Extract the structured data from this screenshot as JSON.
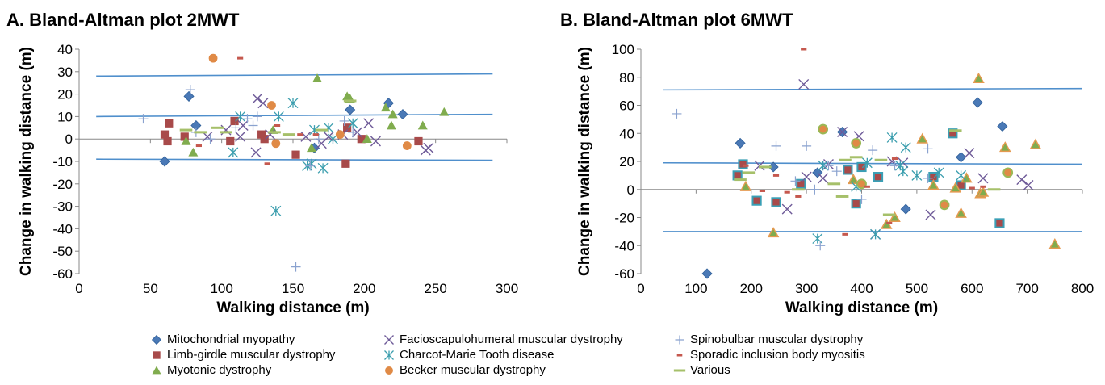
{
  "colors": {
    "Mitochondrial myopathy": "#4a79b6",
    "Limb-girdle muscular dystrophy": "#a84a4a",
    "Myotonic dystrophy": "#80ac4e",
    "Facioscapulohumeral muscular dystrophy": "#6e5a98",
    "Charcot-Marie Tooth disease": "#3b9eae",
    "Becker muscular dystrophy": "#e08a46",
    "Spinobulbar muscular dystrophy": "#8aa2cf",
    "Sporadic inclusion body myositis": "#c5584e",
    "Various": "#a6c06a",
    "line": "#4f8fcc",
    "axis": "#888888"
  },
  "legend": [
    {
      "name": "Mitochondrial myopathy",
      "icon": "diamond-icon"
    },
    {
      "name": "Limb-girdle muscular dystrophy",
      "icon": "square-icon"
    },
    {
      "name": "Myotonic dystrophy",
      "icon": "triangle-icon"
    },
    {
      "name": "Facioscapulohumeral muscular dystrophy",
      "icon": "x-icon"
    },
    {
      "name": "Charcot-Marie Tooth disease",
      "icon": "star-icon"
    },
    {
      "name": "Becker muscular dystrophy",
      "icon": "circle-icon"
    },
    {
      "name": "Spinobulbar muscular dystrophy",
      "icon": "plus-icon"
    },
    {
      "name": "Sporadic inclusion body myositis",
      "icon": "short-dash-icon"
    },
    {
      "name": "Various",
      "icon": "long-dash-icon"
    }
  ],
  "chart_data": [
    {
      "type": "scatter",
      "title": "A. Bland-Altman plot 2MWT",
      "xlabel": "Walking distance (m)",
      "ylabel": "Change in walking distance (m)",
      "xlim": [
        0,
        300
      ],
      "ylim": [
        -60,
        40
      ],
      "xticks": [
        0,
        50,
        100,
        150,
        200,
        250,
        300
      ],
      "yticks": [
        -60,
        -50,
        -40,
        -30,
        -20,
        -10,
        0,
        10,
        20,
        30,
        40
      ],
      "ref_lines": [
        {
          "name": "upper limit",
          "x": [
            12,
            290
          ],
          "y": [
            28,
            29
          ]
        },
        {
          "name": "mean difference",
          "x": [
            12,
            290
          ],
          "y": [
            10,
            11
          ]
        },
        {
          "name": "lower limit",
          "x": [
            12,
            290
          ],
          "y": [
            -9,
            -9.5
          ]
        }
      ],
      "series": [
        {
          "name": "Mitochondrial myopathy",
          "marker": "diamond",
          "points": [
            [
              60,
              -10
            ],
            [
              77,
              19
            ],
            [
              82,
              6
            ],
            [
              190,
              13
            ],
            [
              217,
              16
            ],
            [
              227,
              11
            ],
            [
              165,
              -4
            ]
          ]
        },
        {
          "name": "Limb-girdle muscular dystrophy",
          "marker": "square",
          "points": [
            [
              60,
              2
            ],
            [
              62,
              -1
            ],
            [
              63,
              7
            ],
            [
              74,
              1
            ],
            [
              106,
              -1
            ],
            [
              109,
              8
            ],
            [
              128,
              2
            ],
            [
              130,
              0
            ],
            [
              152,
              -7
            ],
            [
              187,
              -11
            ],
            [
              188,
              5
            ],
            [
              198,
              0
            ],
            [
              238,
              -1
            ]
          ]
        },
        {
          "name": "Myotonic dystrophy",
          "marker": "triangle",
          "points": [
            [
              75,
              -1
            ],
            [
              80,
              -6
            ],
            [
              136,
              4
            ],
            [
              163,
              -4
            ],
            [
              167,
              27
            ],
            [
              188,
              19
            ],
            [
              190,
              18
            ],
            [
              202,
              0
            ],
            [
              215,
              14
            ],
            [
              219,
              6
            ],
            [
              220,
              11
            ],
            [
              241,
              6
            ],
            [
              256,
              12
            ]
          ]
        },
        {
          "name": "Facioscapulohumeral muscular dystrophy",
          "marker": "x",
          "points": [
            [
              90,
              1
            ],
            [
              103,
              4
            ],
            [
              113,
              1
            ],
            [
              115,
              6
            ],
            [
              124,
              -6
            ],
            [
              125,
              18
            ],
            [
              129,
              16
            ],
            [
              134,
              2
            ],
            [
              159,
              1
            ],
            [
              170,
              -2
            ],
            [
              175,
              1
            ],
            [
              185,
              2
            ],
            [
              195,
              3
            ],
            [
              203,
              7
            ],
            [
              208,
              -1
            ],
            [
              243,
              -5
            ],
            [
              245,
              -4
            ]
          ]
        },
        {
          "name": "Charcot-Marie Tooth disease",
          "marker": "star",
          "points": [
            [
              108,
              -6
            ],
            [
              113,
              10
            ],
            [
              140,
              10
            ],
            [
              150,
              16
            ],
            [
              160,
              -12
            ],
            [
              163,
              -11
            ],
            [
              165,
              4
            ],
            [
              171,
              -13
            ],
            [
              175,
              5
            ],
            [
              178,
              0
            ],
            [
              192,
              7
            ],
            [
              138,
              -32
            ]
          ]
        },
        {
          "name": "Becker muscular dystrophy",
          "marker": "circle",
          "points": [
            [
              94,
              36
            ],
            [
              135,
              15
            ],
            [
              138,
              -2
            ],
            [
              183,
              2
            ],
            [
              230,
              -3
            ]
          ]
        },
        {
          "name": "Spinobulbar muscular dystrophy",
          "marker": "plus",
          "points": [
            [
              45,
              9
            ],
            [
              78,
              22
            ],
            [
              82,
              3
            ],
            [
              92,
              0
            ],
            [
              110,
              5
            ],
            [
              118,
              9
            ],
            [
              122,
              6
            ],
            [
              125,
              10
            ],
            [
              152,
              -57
            ],
            [
              162,
              -12
            ],
            [
              168,
              0
            ],
            [
              186,
              8
            ],
            [
              192,
              3
            ]
          ]
        },
        {
          "name": "Sporadic inclusion body myositis",
          "marker": "shortdash",
          "points": [
            [
              84,
              -3
            ],
            [
              113,
              36
            ],
            [
              132,
              -11
            ],
            [
              139,
              6
            ],
            [
              155,
              2
            ],
            [
              166,
              2
            ]
          ]
        },
        {
          "name": "Various",
          "marker": "longdash",
          "points": [
            [
              75,
              4
            ],
            [
              85,
              3
            ],
            [
              97,
              5
            ],
            [
              103,
              3
            ],
            [
              137,
              3
            ],
            [
              147,
              2
            ],
            [
              170,
              4
            ],
            [
              190,
              17
            ]
          ]
        }
      ]
    },
    {
      "type": "scatter",
      "title": "B. Bland-Altman plot 6MWT",
      "xlabel": "Walking distance (m)",
      "ylabel": "Change in walking distance (m)",
      "xlim": [
        0,
        800
      ],
      "ylim": [
        -60,
        100
      ],
      "xticks": [
        0,
        100,
        200,
        300,
        400,
        500,
        600,
        700,
        800
      ],
      "yticks": [
        -60,
        -40,
        -20,
        0,
        20,
        40,
        60,
        80,
        100
      ],
      "ref_lines": [
        {
          "name": "upper limit",
          "x": [
            40,
            800
          ],
          "y": [
            71,
            72
          ]
        },
        {
          "name": "mean difference",
          "x": [
            40,
            800
          ],
          "y": [
            19,
            18
          ]
        },
        {
          "name": "lower limit",
          "x": [
            40,
            800
          ],
          "y": [
            -30,
            -30
          ]
        }
      ],
      "series": [
        {
          "name": "Mitochondrial myopathy",
          "marker": "diamond",
          "points": [
            [
              120,
              -60
            ],
            [
              180,
              33
            ],
            [
              240,
              16
            ],
            [
              320,
              12
            ],
            [
              365,
              41
            ],
            [
              480,
              -14
            ],
            [
              580,
              23
            ],
            [
              610,
              62
            ],
            [
              655,
              45
            ]
          ]
        },
        {
          "name": "Limb-girdle muscular dystrophy",
          "marker": "square",
          "points": [
            [
              175,
              10
            ],
            [
              185,
              18
            ],
            [
              210,
              -8
            ],
            [
              245,
              -9
            ],
            [
              290,
              4
            ],
            [
              375,
              14
            ],
            [
              390,
              -10
            ],
            [
              400,
              16
            ],
            [
              430,
              9
            ],
            [
              530,
              9
            ],
            [
              565,
              40
            ],
            [
              580,
              3
            ],
            [
              650,
              -24
            ]
          ]
        },
        {
          "name": "Myotonic dystrophy",
          "marker": "triangle",
          "points": [
            [
              190,
              2
            ],
            [
              240,
              -31
            ],
            [
              385,
              7
            ],
            [
              445,
              -25
            ],
            [
              460,
              -20
            ],
            [
              510,
              36
            ],
            [
              530,
              3
            ],
            [
              570,
              1
            ],
            [
              580,
              -17
            ],
            [
              590,
              8
            ],
            [
              612,
              79
            ],
            [
              615,
              -3
            ],
            [
              620,
              -2
            ],
            [
              660,
              30
            ],
            [
              715,
              32
            ],
            [
              750,
              -39
            ]
          ]
        },
        {
          "name": "Facioscapulohumeral muscular dystrophy",
          "marker": "x",
          "points": [
            [
              215,
              17
            ],
            [
              265,
              -14
            ],
            [
              295,
              75
            ],
            [
              300,
              9
            ],
            [
              330,
              8
            ],
            [
              340,
              18
            ],
            [
              365,
              41
            ],
            [
              395,
              38
            ],
            [
              425,
              -32
            ],
            [
              455,
              20
            ],
            [
              475,
              19
            ],
            [
              525,
              -18
            ],
            [
              595,
              26
            ],
            [
              620,
              8
            ],
            [
              690,
              7
            ],
            [
              702,
              3
            ]
          ]
        },
        {
          "name": "Charcot-Marie Tooth disease",
          "marker": "star",
          "points": [
            [
              320,
              -35
            ],
            [
              330,
              17
            ],
            [
              390,
              2
            ],
            [
              410,
              19
            ],
            [
              425,
              -32
            ],
            [
              455,
              37
            ],
            [
              470,
              17
            ],
            [
              475,
              13
            ],
            [
              480,
              30
            ],
            [
              500,
              10
            ],
            [
              540,
              12
            ],
            [
              580,
              10
            ]
          ]
        },
        {
          "name": "Becker muscular dystrophy",
          "marker": "circle",
          "points": [
            [
              330,
              43
            ],
            [
              390,
              33
            ],
            [
              400,
              4
            ],
            [
              550,
              -11
            ],
            [
              665,
              12
            ]
          ]
        },
        {
          "name": "Spinobulbar muscular dystrophy",
          "marker": "plus",
          "points": [
            [
              65,
              54
            ],
            [
              245,
              31
            ],
            [
              280,
              6
            ],
            [
              300,
              31
            ],
            [
              315,
              0
            ],
            [
              325,
              -40
            ],
            [
              340,
              17
            ],
            [
              355,
              13
            ],
            [
              400,
              -7
            ],
            [
              420,
              28
            ],
            [
              460,
              17
            ],
            [
              520,
              29
            ],
            [
              520,
              8
            ]
          ]
        },
        {
          "name": "Sporadic inclusion body myositis",
          "marker": "shortdash",
          "points": [
            [
              190,
              17
            ],
            [
              220,
              -1
            ],
            [
              245,
              10
            ],
            [
              265,
              -2
            ],
            [
              285,
              -5
            ],
            [
              295,
              100
            ],
            [
              370,
              -32
            ],
            [
              410,
              2
            ],
            [
              450,
              -24
            ],
            [
              460,
              22
            ],
            [
              600,
              1
            ],
            [
              620,
              2
            ]
          ]
        },
        {
          "name": "Various",
          "marker": "longdash",
          "points": [
            [
              180,
              7
            ],
            [
              195,
              12
            ],
            [
              225,
              16
            ],
            [
              285,
              0
            ],
            [
              350,
              4
            ],
            [
              365,
              -5
            ],
            [
              370,
              21
            ],
            [
              390,
              23
            ],
            [
              435,
              21
            ],
            [
              450,
              -18
            ],
            [
              570,
              42
            ],
            [
              640,
              0
            ]
          ]
        }
      ]
    }
  ]
}
